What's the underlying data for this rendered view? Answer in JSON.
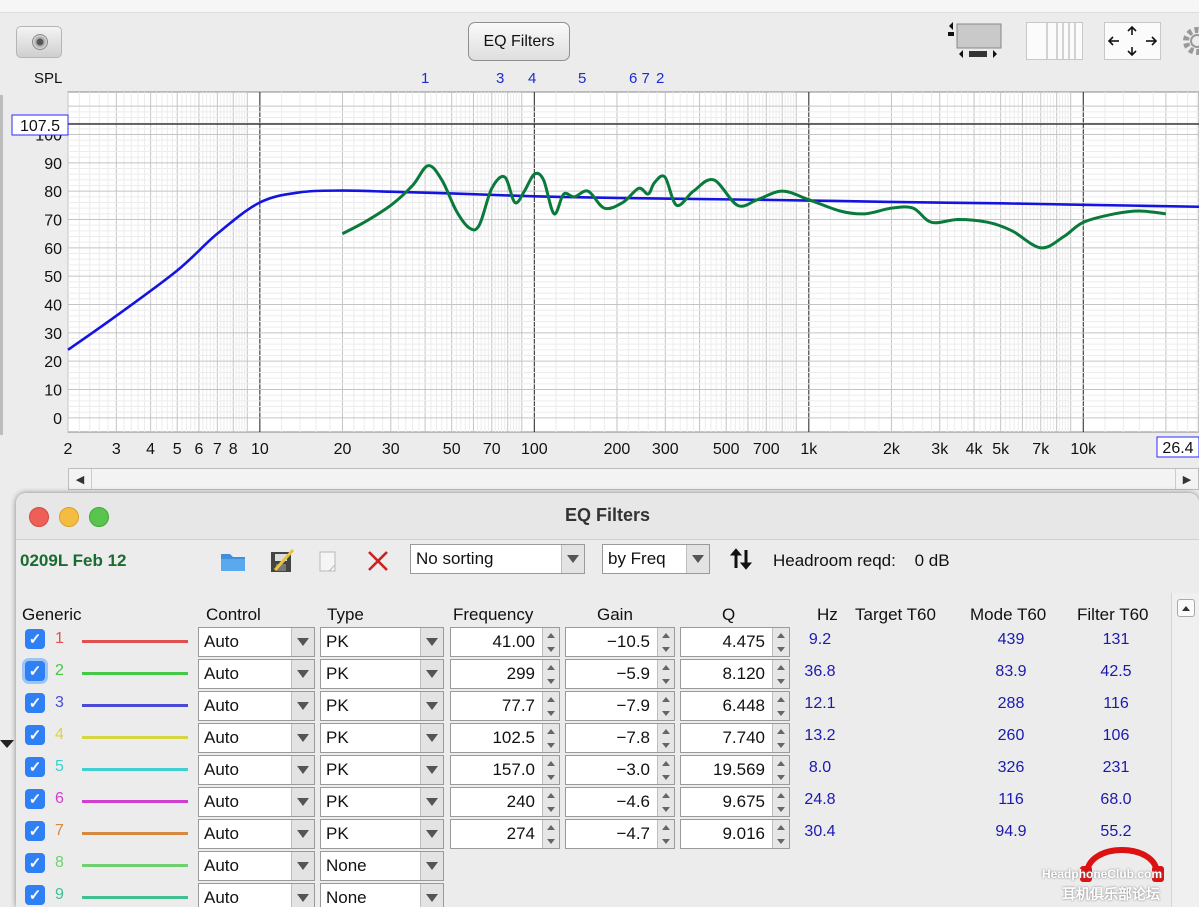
{
  "toolbar": {
    "eq_filters_button": "EQ Filters",
    "camera_icon": "camera-icon",
    "layout_icons": [
      "panel-layout-icon",
      "columns-icon",
      "fit-arrows-icon",
      "gear-icon"
    ]
  },
  "chart": {
    "spl_label": "SPL",
    "y_readout": "107.5",
    "x_readout": "26.4",
    "filter_markers": [
      "1",
      "3",
      "4",
      "5",
      "6 7",
      "2"
    ],
    "y_ticks": [
      "100",
      "90",
      "80",
      "70",
      "60",
      "50",
      "40",
      "30",
      "20",
      "10",
      "0"
    ],
    "x_ticks": [
      "2",
      "3",
      "4",
      "5",
      "6",
      "7",
      "8",
      "10",
      "20",
      "30",
      "50",
      "70",
      "100",
      "200",
      "300",
      "500",
      "700",
      "1k",
      "2k",
      "3k",
      "4k",
      "5k",
      "7k",
      "10k"
    ]
  },
  "chart_data": {
    "type": "line",
    "xlabel": "",
    "ylabel": "SPL",
    "x_scale": "log",
    "xlim": [
      2,
      26400
    ],
    "ylim": [
      -5,
      115
    ],
    "grid": true,
    "series": [
      {
        "color": "#1414e0",
        "x": [
          2,
          3,
          5,
          7,
          10,
          14,
          20,
          30,
          50,
          100,
          200,
          500,
          1000,
          2000,
          5000,
          10000,
          26400
        ],
        "y": [
          24,
          36,
          52,
          65,
          76,
          79.6,
          80.2,
          79.8,
          79.2,
          78.2,
          77.6,
          77.1,
          76.7,
          76.2,
          75.7,
          75.2,
          74.5
        ]
      },
      {
        "color": "#0a7a3c",
        "x": [
          20,
          24,
          30,
          36,
          41,
          46,
          52,
          58,
          63,
          70,
          78,
          85,
          92,
          100,
          108,
          118,
          128,
          140,
          157,
          180,
          210,
          240,
          260,
          274,
          299,
          330,
          380,
          450,
          550,
          650,
          800,
          1000,
          1300,
          1600,
          2000,
          2400,
          2800,
          3500,
          4500,
          5500,
          7000,
          8500,
          10000,
          13000,
          16000,
          20000
        ],
        "y": [
          65,
          69,
          75,
          82,
          89,
          84,
          73,
          67,
          68,
          81,
          85,
          76,
          80,
          86,
          84,
          72,
          79,
          78,
          80,
          74,
          76,
          81,
          79,
          83,
          85,
          75,
          80,
          84,
          75,
          77,
          80,
          77,
          73,
          72,
          74,
          74,
          69,
          70,
          69,
          66,
          60,
          64,
          69,
          72,
          73,
          72
        ]
      }
    ]
  },
  "eq_window": {
    "title": "EQ Filters",
    "filter_set_name": "0209L Feb 12",
    "toolbar_icons": [
      "folder-icon",
      "save-icon",
      "copy-icon",
      "delete-icon"
    ],
    "sorting": "No sorting",
    "sort_by": "by Freq",
    "sort_direction_icon": "sort-arrows-icon",
    "headroom_label": "Headroom reqd:",
    "headroom_value": "0 dB",
    "headers": {
      "generic": "Generic",
      "control": "Control",
      "type": "Type",
      "frequency": "Frequency",
      "gain": "Gain",
      "q": "Q",
      "hz": "Hz",
      "target_t60": "Target T60",
      "mode_t60": "Mode T60",
      "filter_t60": "Filter T60"
    },
    "rows": [
      {
        "num": "1",
        "color": "#e05050",
        "control": "Auto",
        "type": "PK",
        "freq": "41.00",
        "gain": "−10.5",
        "q": "4.475",
        "hz": "9.2",
        "mode": "439",
        "filter": "131"
      },
      {
        "num": "2",
        "color": "#45c845",
        "control": "Auto",
        "type": "PK",
        "freq": "299",
        "gain": "−5.9",
        "q": "8.120",
        "hz": "36.8",
        "mode": "83.9",
        "filter": "42.5"
      },
      {
        "num": "3",
        "color": "#4a4ad6",
        "control": "Auto",
        "type": "PK",
        "freq": "77.7",
        "gain": "−7.9",
        "q": "6.448",
        "hz": "12.1",
        "mode": "288",
        "filter": "116"
      },
      {
        "num": "4",
        "color": "#d6d640",
        "control": "Auto",
        "type": "PK",
        "freq": "102.5",
        "gain": "−7.8",
        "q": "7.740",
        "hz": "13.2",
        "mode": "260",
        "filter": "106"
      },
      {
        "num": "5",
        "color": "#40d0d0",
        "control": "Auto",
        "type": "PK",
        "freq": "157.0",
        "gain": "−3.0",
        "q": "19.569",
        "hz": "8.0",
        "mode": "326",
        "filter": "231"
      },
      {
        "num": "6",
        "color": "#d040d0",
        "control": "Auto",
        "type": "PK",
        "freq": "240",
        "gain": "−4.6",
        "q": "9.675",
        "hz": "24.8",
        "mode": "116",
        "filter": "68.0"
      },
      {
        "num": "7",
        "color": "#d68a40",
        "control": "Auto",
        "type": "PK",
        "freq": "274",
        "gain": "−4.7",
        "q": "9.016",
        "hz": "30.4",
        "mode": "94.9",
        "filter": "55.2"
      },
      {
        "num": "8",
        "color": "#70d070",
        "control": "Auto",
        "type": "None",
        "freq": "",
        "gain": "",
        "q": "",
        "hz": "",
        "mode": "",
        "filter": ""
      },
      {
        "num": "9",
        "color": "#40c090",
        "control": "Auto",
        "type": "None",
        "freq": "",
        "gain": "",
        "q": "",
        "hz": "",
        "mode": "",
        "filter": ""
      }
    ]
  },
  "watermark": {
    "line1": "HeadphoneClub.com",
    "line2": "耳机俱乐部论坛"
  }
}
